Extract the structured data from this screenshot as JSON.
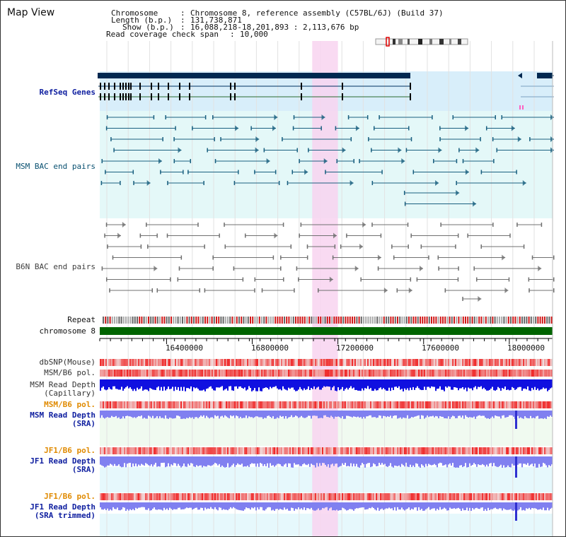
{
  "title": "Map View",
  "info": {
    "chromosome_label": "Chromosome",
    "chromosome_value": "Chromosome 8, reference assembly (C57BL/6J) (Build 37)",
    "length_label": "Length (b.p.)",
    "length_value": "131,738,871",
    "show_label": "Show (b.p.)",
    "show_value": "16,088,218-18,201,893 : 2,113,676 bp",
    "coverage_label": "Read coverage check span",
    "coverage_value": "10,000"
  },
  "tracks": {
    "refseq": "RefSeq Genes",
    "msm_bac": "MSM BAC end pairs",
    "b6n_bac": "B6N BAC end pairs",
    "repeat": "Repeat",
    "chromosome": "chromosome 8",
    "dbsnp": "dbSNP(Mouse)",
    "msm_b6_pol_1": "MSM/B6 pol.",
    "msm_depth_cap": "MSM Read Depth\n(Capillary)",
    "msm_b6_pol_2": "MSM/B6 pol.",
    "msm_depth_sra": "MSM Read Depth\n(SRA)",
    "jf1_b6_pol_1": "JF1/B6 pol.",
    "jf1_depth_sra": "JF1 Read Depth\n(SRA)",
    "jf1_b6_pol_2": "JF1/B6 pol.",
    "jf1_depth_trim": "JF1 Read Depth\n(SRA trimmed)"
  },
  "axis": {
    "start_bp": 16088218,
    "end_bp": 18201893,
    "ticks": [
      "16400000",
      "16800000",
      "17200000",
      "17600000",
      "18000000"
    ],
    "tick_values": [
      16400000,
      16800000,
      17200000,
      17600000,
      18000000
    ]
  },
  "highlight": {
    "start_bp": 17080000,
    "end_bp": 17200000,
    "color": "#f8d4f0"
  },
  "colors": {
    "refseq_dark": "#002850",
    "refseq_bg": "#d8eefa",
    "msm_line": "#1a6080",
    "b6n_line": "#707070",
    "chromosome_bar": "#006400",
    "depth_capillary": "#1010e0",
    "depth_sra": "#8080f0",
    "pol_red": "#f03030",
    "label_blue": "#1020a0",
    "label_orange": "#e08a00"
  }
}
